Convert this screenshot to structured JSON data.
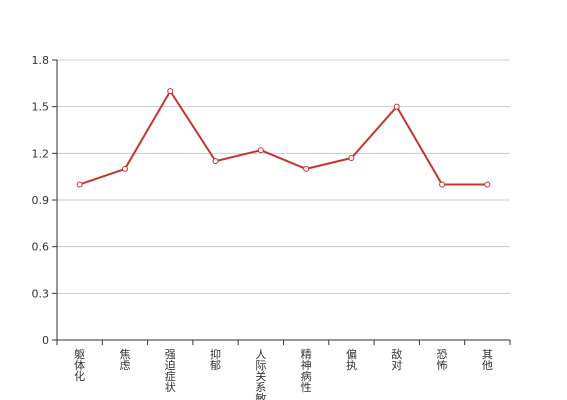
{
  "chart_data": {
    "type": "line",
    "categories": [
      "躯体化",
      "焦虑",
      "强迫症状",
      "抑郁",
      "人际关系敏感",
      "精神病性",
      "偏执",
      "敌对",
      "恐怖",
      "其他"
    ],
    "series": [
      {
        "values": [
          1.0,
          1.1,
          1.6,
          1.15,
          1.22,
          1.1,
          1.17,
          1.5,
          1.0,
          1.0
        ]
      }
    ],
    "yticks": [
      "0",
      "0.3",
      "0.6",
      "0.9",
      "1.2",
      "1.5",
      "1.8"
    ],
    "ylim": [
      0,
      1.8
    ],
    "grid": true,
    "legend": "none",
    "colors": {
      "line": "#c23531",
      "grid": "#cccccc",
      "axis": "#333333",
      "text": "#333333"
    }
  }
}
